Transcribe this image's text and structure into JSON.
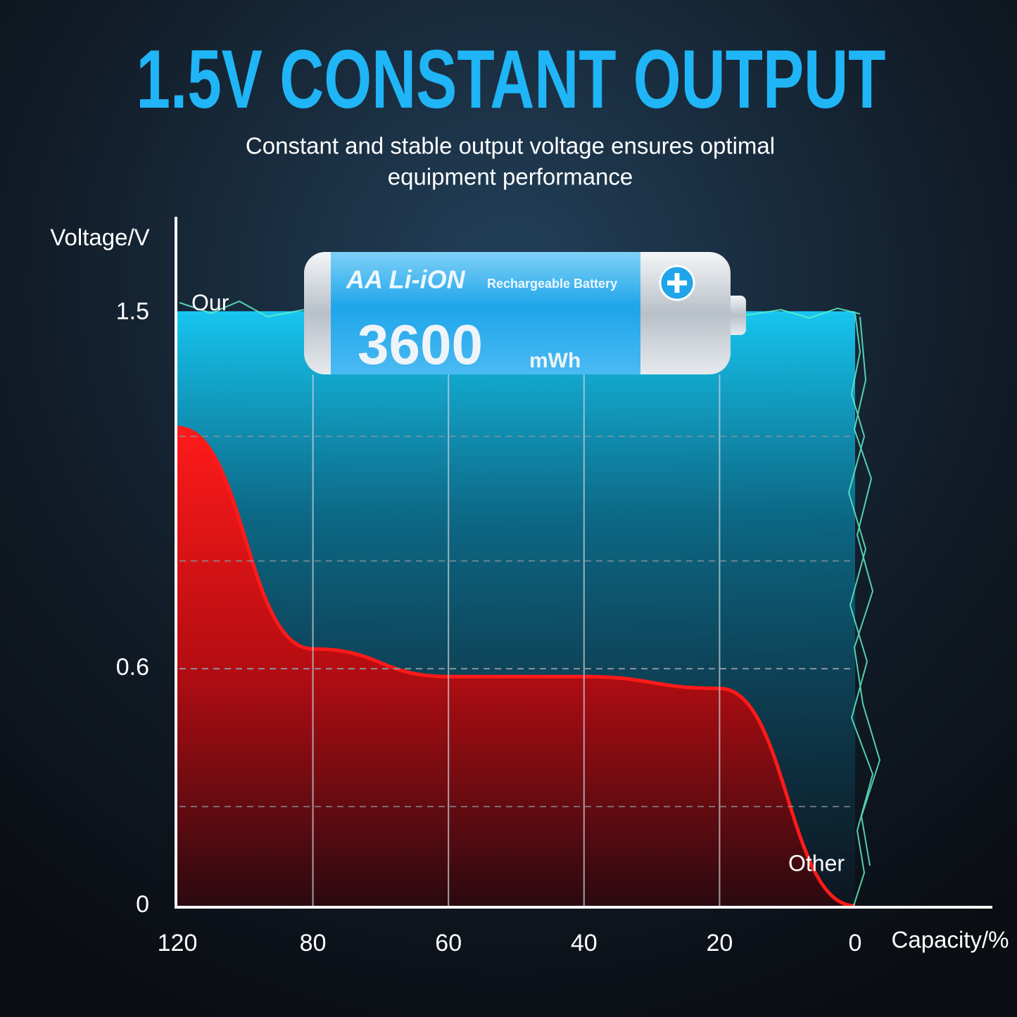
{
  "chart_data": {
    "type": "area",
    "title": "1.5V CONSTANT OUTPUT",
    "subtitle": [
      "Constant and stable output voltage ensures optimal",
      "equipment performance"
    ],
    "y_label": "Voltage/V",
    "x_label": "Capacity/%",
    "categories": [
      "120",
      "80",
      "60",
      "40",
      "20",
      "0"
    ],
    "series": [
      {
        "name": "Our",
        "color": "#19c6f2",
        "values": [
          1.5,
          1.5,
          1.5,
          1.5,
          1.5,
          1.5
        ]
      },
      {
        "name": "Other",
        "color": "#ff1a1a",
        "values": [
          1.21,
          0.65,
          0.58,
          0.58,
          0.55,
          0
        ]
      }
    ],
    "ylim": [
      0,
      1.74
    ],
    "yticks": [
      0,
      0.6,
      1.5
    ],
    "grid": true
  },
  "battery": {
    "brand": "AA Li-iON",
    "label": "Rechargeable Battery",
    "capacity": "3600",
    "unit": "mWh"
  }
}
